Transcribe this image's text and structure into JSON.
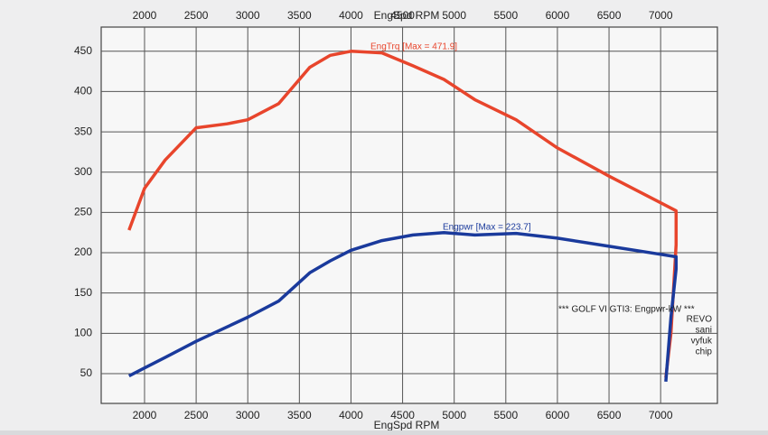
{
  "chart_data": {
    "type": "line",
    "xlabel": "EngSpd RPM",
    "x": [
      1850,
      2000,
      2200,
      2500,
      2800,
      3000,
      3300,
      3600,
      3800,
      4000,
      4300,
      4600,
      4900,
      5200,
      5600,
      6000,
      6500,
      7000,
      7150,
      7150,
      7100,
      7050
    ],
    "series": [
      {
        "name": "EngTrq",
        "color": "#e8452c",
        "values": [
          228,
          280,
          315,
          355,
          360,
          365,
          385,
          430,
          445,
          450,
          448,
          432,
          415,
          390,
          365,
          330,
          295,
          262,
          252,
          210,
          100,
          45
        ]
      },
      {
        "name": "Engpwr",
        "color": "#1a3a9c",
        "values": [
          47,
          57,
          70,
          90,
          108,
          120,
          140,
          175,
          190,
          203,
          215,
          222,
          225,
          222,
          224,
          218,
          208,
          198,
          195,
          180,
          120,
          40
        ]
      }
    ],
    "xlim": [
      1580,
      7550
    ],
    "ylim": [
      13,
      480
    ],
    "xticks": [
      2000,
      2500,
      3000,
      3500,
      4000,
      4500,
      5000,
      5500,
      6000,
      6500,
      7000
    ],
    "yticks": [
      50,
      100,
      150,
      200,
      250,
      300,
      350,
      400,
      450
    ],
    "grid": true,
    "annotations": [
      "EngTrq [Max = 471.9]",
      "Engpwr [Max = 223.7]",
      "*** GOLF VI GTI3: Engpwr-kW ***",
      "REVO",
      "sani",
      "vyfuk",
      "chip"
    ]
  }
}
